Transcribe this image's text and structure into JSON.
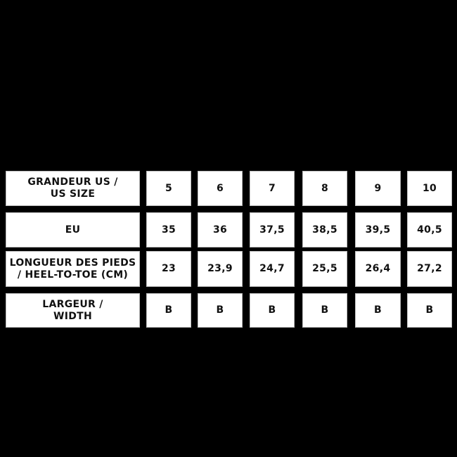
{
  "table": {
    "rows": [
      {
        "label": "GRANDEUR US /\nUS SIZE",
        "values": [
          "5",
          "6",
          "7",
          "8",
          "9",
          "10"
        ]
      },
      {
        "label": "EU",
        "values": [
          "35",
          "36",
          "37,5",
          "38,5",
          "39,5",
          "40,5"
        ]
      },
      {
        "label": "LONGUEUR DES PIEDS\n/ HEEL-TO-TOE (CM)",
        "values": [
          "23",
          "23,9",
          "24,7",
          "25,5",
          "26,4",
          "27,2"
        ]
      },
      {
        "label": "LARGEUR /\nWIDTH",
        "values": [
          "B",
          "B",
          "B",
          "B",
          "B",
          "B"
        ]
      }
    ]
  },
  "colors": {
    "background": "#000000",
    "cell": "#ffffff",
    "text": "#111111"
  }
}
